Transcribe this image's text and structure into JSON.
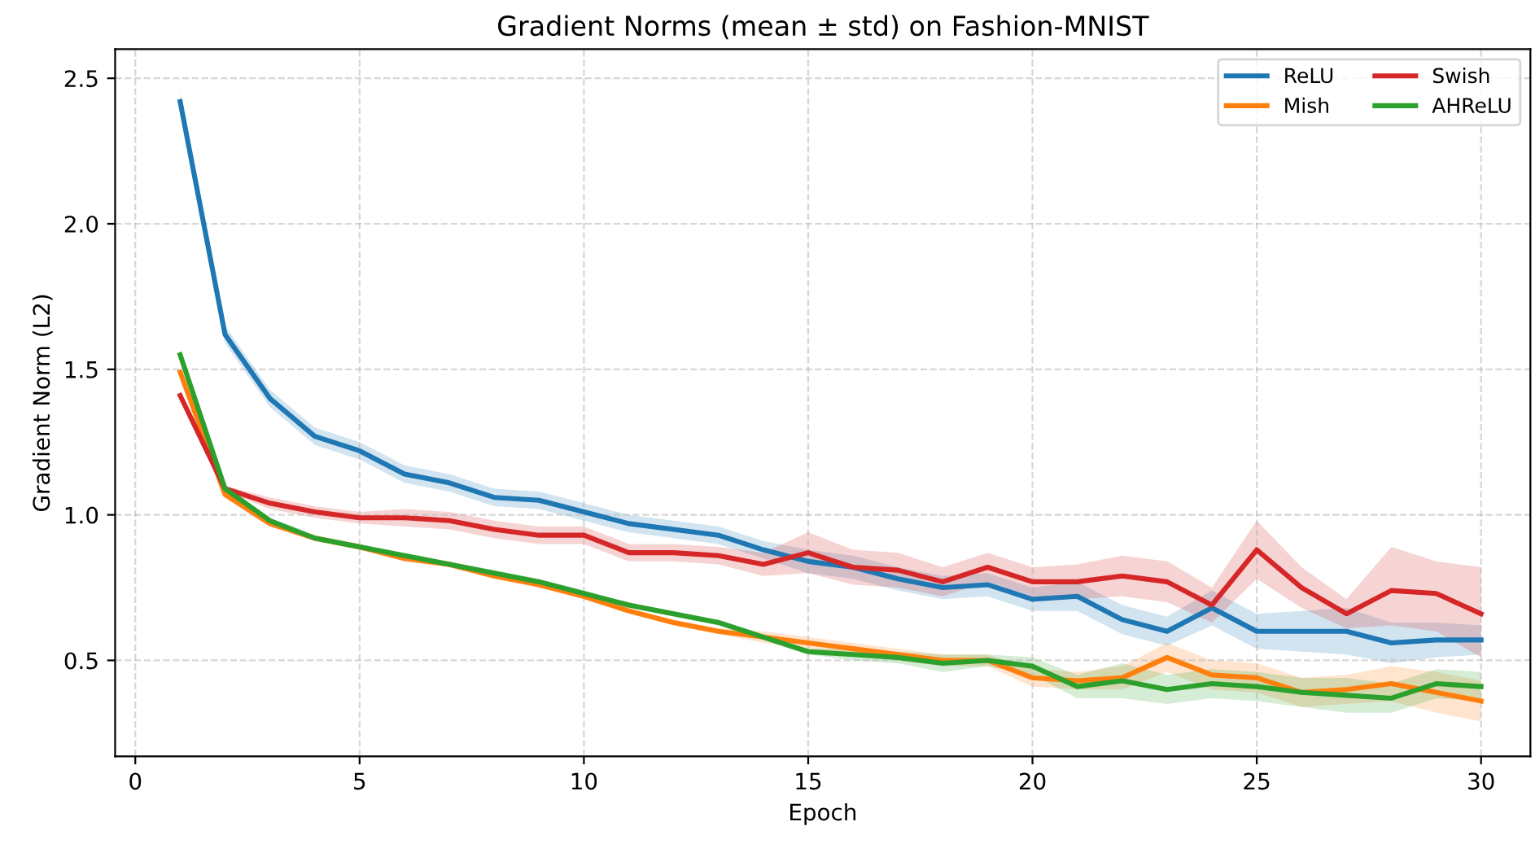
{
  "chart_data": {
    "type": "line",
    "title": "Gradient Norms (mean ± std) on Fashion-MNIST",
    "xlabel": "Epoch",
    "ylabel": "Gradient Norm (L2)",
    "x": [
      1,
      2,
      3,
      4,
      5,
      6,
      7,
      8,
      9,
      10,
      11,
      12,
      13,
      14,
      15,
      16,
      17,
      18,
      19,
      20,
      21,
      22,
      23,
      24,
      25,
      26,
      27,
      28,
      29,
      30
    ],
    "series": [
      {
        "name": "ReLU",
        "color": "#1f77b4",
        "values": [
          2.42,
          1.62,
          1.4,
          1.27,
          1.22,
          1.14,
          1.11,
          1.06,
          1.05,
          1.01,
          0.97,
          0.95,
          0.93,
          0.88,
          0.84,
          0.82,
          0.78,
          0.75,
          0.76,
          0.71,
          0.72,
          0.64,
          0.6,
          0.68,
          0.6,
          0.6,
          0.6,
          0.56,
          0.57,
          0.57
        ],
        "lower": [
          2.39,
          1.59,
          1.37,
          1.24,
          1.19,
          1.11,
          1.08,
          1.03,
          1.02,
          0.98,
          0.94,
          0.92,
          0.9,
          0.85,
          0.8,
          0.78,
          0.74,
          0.71,
          0.72,
          0.67,
          0.67,
          0.59,
          0.55,
          0.62,
          0.54,
          0.53,
          0.52,
          0.49,
          0.51,
          0.52
        ],
        "upper": [
          2.45,
          1.65,
          1.43,
          1.3,
          1.25,
          1.17,
          1.14,
          1.09,
          1.08,
          1.04,
          1.0,
          0.98,
          0.96,
          0.91,
          0.88,
          0.86,
          0.82,
          0.79,
          0.8,
          0.75,
          0.77,
          0.69,
          0.65,
          0.74,
          0.66,
          0.67,
          0.68,
          0.63,
          0.63,
          0.62
        ]
      },
      {
        "name": "Mish",
        "color": "#ff7f0e",
        "values": [
          1.49,
          1.07,
          0.97,
          0.92,
          0.89,
          0.85,
          0.83,
          0.79,
          0.76,
          0.72,
          0.67,
          0.63,
          0.6,
          0.58,
          0.56,
          0.54,
          0.52,
          0.5,
          0.5,
          0.44,
          0.43,
          0.44,
          0.51,
          0.45,
          0.44,
          0.39,
          0.4,
          0.42,
          0.39,
          0.36
        ],
        "lower": [
          1.48,
          1.06,
          0.96,
          0.91,
          0.88,
          0.84,
          0.82,
          0.78,
          0.75,
          0.71,
          0.66,
          0.62,
          0.59,
          0.56,
          0.54,
          0.52,
          0.5,
          0.48,
          0.48,
          0.41,
          0.4,
          0.4,
          0.46,
          0.4,
          0.39,
          0.34,
          0.35,
          0.36,
          0.32,
          0.29
        ],
        "upper": [
          1.5,
          1.08,
          0.98,
          0.93,
          0.9,
          0.86,
          0.84,
          0.8,
          0.77,
          0.73,
          0.68,
          0.64,
          0.61,
          0.6,
          0.58,
          0.56,
          0.54,
          0.52,
          0.52,
          0.47,
          0.46,
          0.48,
          0.56,
          0.5,
          0.49,
          0.44,
          0.45,
          0.48,
          0.46,
          0.43
        ]
      },
      {
        "name": "Swish",
        "color": "#d62728",
        "values": [
          1.41,
          1.09,
          1.04,
          1.01,
          0.99,
          0.99,
          0.98,
          0.95,
          0.93,
          0.93,
          0.87,
          0.87,
          0.86,
          0.83,
          0.87,
          0.82,
          0.81,
          0.77,
          0.82,
          0.77,
          0.77,
          0.79,
          0.77,
          0.69,
          0.88,
          0.75,
          0.66,
          0.74,
          0.73,
          0.66
        ],
        "lower": [
          1.4,
          1.08,
          1.02,
          0.99,
          0.97,
          0.96,
          0.95,
          0.92,
          0.9,
          0.9,
          0.84,
          0.84,
          0.83,
          0.79,
          0.8,
          0.76,
          0.75,
          0.72,
          0.77,
          0.72,
          0.71,
          0.72,
          0.7,
          0.63,
          0.78,
          0.68,
          0.61,
          0.62,
          0.6,
          0.51
        ],
        "upper": [
          1.42,
          1.1,
          1.06,
          1.03,
          1.01,
          1.02,
          1.01,
          0.98,
          0.96,
          0.96,
          0.9,
          0.9,
          0.89,
          0.87,
          0.94,
          0.88,
          0.87,
          0.82,
          0.87,
          0.82,
          0.83,
          0.86,
          0.84,
          0.75,
          0.98,
          0.82,
          0.71,
          0.89,
          0.84,
          0.82
        ]
      },
      {
        "name": "AHReLU",
        "color": "#2ca02c",
        "values": [
          1.55,
          1.09,
          0.98,
          0.92,
          0.89,
          0.86,
          0.83,
          0.8,
          0.77,
          0.73,
          0.69,
          0.66,
          0.63,
          0.58,
          0.53,
          0.52,
          0.51,
          0.49,
          0.5,
          0.48,
          0.41,
          0.43,
          0.4,
          0.42,
          0.41,
          0.39,
          0.38,
          0.37,
          0.42,
          0.41
        ],
        "lower": [
          1.54,
          1.08,
          0.97,
          0.91,
          0.88,
          0.85,
          0.82,
          0.79,
          0.76,
          0.72,
          0.68,
          0.65,
          0.62,
          0.57,
          0.52,
          0.5,
          0.49,
          0.46,
          0.48,
          0.45,
          0.37,
          0.37,
          0.35,
          0.37,
          0.36,
          0.34,
          0.32,
          0.32,
          0.37,
          0.36
        ],
        "upper": [
          1.56,
          1.1,
          0.99,
          0.93,
          0.9,
          0.87,
          0.84,
          0.81,
          0.78,
          0.74,
          0.7,
          0.67,
          0.64,
          0.59,
          0.54,
          0.54,
          0.53,
          0.52,
          0.52,
          0.51,
          0.45,
          0.49,
          0.45,
          0.47,
          0.46,
          0.44,
          0.44,
          0.42,
          0.47,
          0.46
        ]
      }
    ],
    "xlim": [
      -0.45,
      31.1
    ],
    "ylim": [
      0.17,
      2.6
    ],
    "xticks": [
      0,
      5,
      10,
      15,
      20,
      25,
      30
    ],
    "yticks": [
      0.5,
      {
        "value": 1,
        "label": "1.0"
      },
      1.5,
      {
        "value": 2,
        "label": "2.0"
      },
      2.5
    ],
    "grid": true,
    "legend": "top right",
    "marker": "none",
    "line_style": "solid"
  }
}
